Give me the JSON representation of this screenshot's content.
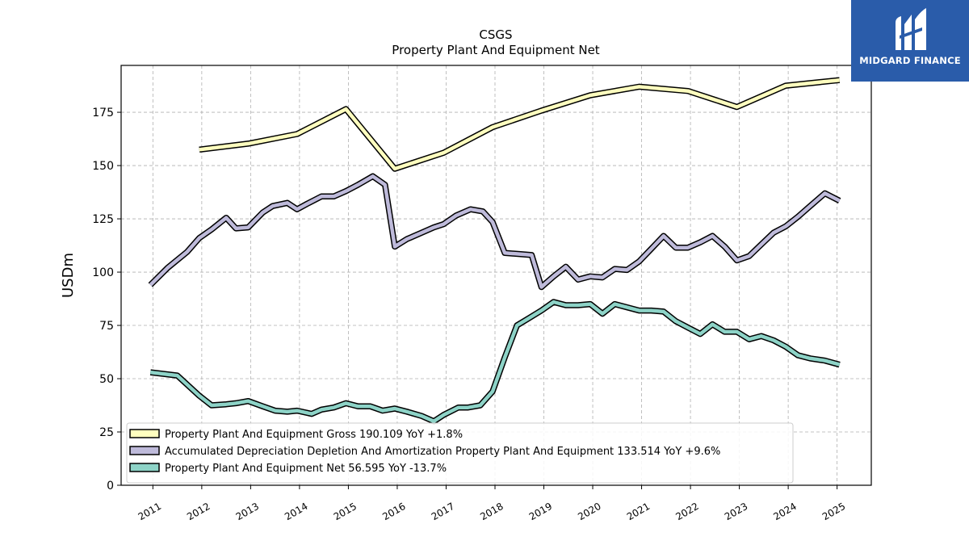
{
  "brand": {
    "name": "MIDGARD FINANCE",
    "logo_icon": "midgard-finance-logo-icon",
    "color": "#2a5caa"
  },
  "chart_data": {
    "type": "line",
    "title": "CSGS",
    "subtitle": "Property Plant And Equipment Net",
    "ylabel": "USDm",
    "xlabel": "",
    "ylim": [
      0,
      197
    ],
    "xlim": [
      2010.35,
      2025.7
    ],
    "yticks": [
      0,
      25,
      50,
      75,
      100,
      125,
      150,
      175
    ],
    "xticks": [
      2011,
      2012,
      2013,
      2014,
      2015,
      2016,
      2017,
      2018,
      2019,
      2020,
      2021,
      2022,
      2023,
      2024,
      2025
    ],
    "grid": true,
    "legend_position": "lower-left",
    "series": [
      {
        "name": "Property Plant And Equipment Gross",
        "legend_label": "Property Plant And Equipment Gross  190.109 YoY +1.8%",
        "color": "#ffffbf",
        "points": [
          [
            2011.95,
            157.5
          ],
          [
            2012.95,
            160.3
          ],
          [
            2013.95,
            164.8
          ],
          [
            2014.95,
            176.5
          ],
          [
            2015.95,
            148.5
          ],
          [
            2016.95,
            156.0
          ],
          [
            2017.95,
            168.0
          ],
          [
            2018.95,
            175.8
          ],
          [
            2019.95,
            183.0
          ],
          [
            2020.95,
            187.0
          ],
          [
            2021.95,
            185.0
          ],
          [
            2022.95,
            177.5
          ],
          [
            2023.95,
            187.5
          ],
          [
            2025.05,
            190.1
          ]
        ]
      },
      {
        "name": "Accumulated Depreciation Depletion And Amortization Property Plant And Equipment",
        "legend_label": "Accumulated Depreciation Depletion And Amortization Property Plant And Equipment  133.514 YoY +9.6%",
        "color": "#bebada",
        "points": [
          [
            2010.95,
            94.0
          ],
          [
            2011.3,
            102.0
          ],
          [
            2011.7,
            109.5
          ],
          [
            2011.95,
            116.0
          ],
          [
            2012.2,
            120.0
          ],
          [
            2012.5,
            125.5
          ],
          [
            2012.7,
            120.5
          ],
          [
            2012.95,
            121.0
          ],
          [
            2013.25,
            128.0
          ],
          [
            2013.45,
            131.0
          ],
          [
            2013.75,
            132.5
          ],
          [
            2013.95,
            129.5
          ],
          [
            2014.15,
            132.0
          ],
          [
            2014.45,
            135.5
          ],
          [
            2014.7,
            135.5
          ],
          [
            2014.95,
            138.0
          ],
          [
            2015.2,
            141.0
          ],
          [
            2015.5,
            145.0
          ],
          [
            2015.75,
            141.0
          ],
          [
            2015.95,
            112.0
          ],
          [
            2016.2,
            115.5
          ],
          [
            2016.5,
            118.5
          ],
          [
            2016.75,
            121.0
          ],
          [
            2016.95,
            122.5
          ],
          [
            2017.2,
            126.5
          ],
          [
            2017.5,
            129.5
          ],
          [
            2017.75,
            128.5
          ],
          [
            2017.95,
            123.5
          ],
          [
            2018.2,
            109.0
          ],
          [
            2018.5,
            108.5
          ],
          [
            2018.75,
            108.0
          ],
          [
            2018.95,
            93.0
          ],
          [
            2019.2,
            98.0
          ],
          [
            2019.45,
            102.5
          ],
          [
            2019.7,
            96.5
          ],
          [
            2019.95,
            98.0
          ],
          [
            2020.2,
            97.5
          ],
          [
            2020.45,
            101.5
          ],
          [
            2020.7,
            101.0
          ],
          [
            2020.95,
            105.0
          ],
          [
            2021.2,
            111.0
          ],
          [
            2021.45,
            117.0
          ],
          [
            2021.7,
            111.5
          ],
          [
            2021.95,
            111.5
          ],
          [
            2022.2,
            114.0
          ],
          [
            2022.45,
            117.0
          ],
          [
            2022.7,
            112.0
          ],
          [
            2022.95,
            105.5
          ],
          [
            2023.2,
            107.5
          ],
          [
            2023.45,
            113.0
          ],
          [
            2023.7,
            118.5
          ],
          [
            2023.95,
            121.5
          ],
          [
            2024.2,
            126.0
          ],
          [
            2024.45,
            131.0
          ],
          [
            2024.75,
            137.0
          ],
          [
            2025.05,
            133.5
          ]
        ]
      },
      {
        "name": "Property Plant And Equipment Net",
        "legend_label": "Property Plant And Equipment Net  56.595 YoY -13.7%",
        "color": "#8dd3c7",
        "points": [
          [
            2010.95,
            53.0
          ],
          [
            2011.5,
            51.5
          ],
          [
            2011.95,
            42.0
          ],
          [
            2012.2,
            37.5
          ],
          [
            2012.5,
            38.0
          ],
          [
            2012.7,
            38.5
          ],
          [
            2012.95,
            39.5
          ],
          [
            2013.25,
            37.0
          ],
          [
            2013.5,
            35.0
          ],
          [
            2013.75,
            34.5
          ],
          [
            2013.95,
            35.0
          ],
          [
            2014.25,
            33.5
          ],
          [
            2014.45,
            35.5
          ],
          [
            2014.7,
            36.5
          ],
          [
            2014.95,
            38.5
          ],
          [
            2015.2,
            37.0
          ],
          [
            2015.45,
            37.0
          ],
          [
            2015.7,
            35.0
          ],
          [
            2015.95,
            36.0
          ],
          [
            2016.2,
            34.5
          ],
          [
            2016.5,
            32.5
          ],
          [
            2016.75,
            30.0
          ],
          [
            2016.95,
            33.0
          ],
          [
            2017.25,
            36.5
          ],
          [
            2017.45,
            36.5
          ],
          [
            2017.7,
            37.5
          ],
          [
            2017.95,
            44.0
          ],
          [
            2018.2,
            60.0
          ],
          [
            2018.45,
            75.0
          ],
          [
            2018.7,
            78.5
          ],
          [
            2018.95,
            82.0
          ],
          [
            2019.2,
            86.0
          ],
          [
            2019.45,
            84.5
          ],
          [
            2019.7,
            84.5
          ],
          [
            2019.95,
            85.0
          ],
          [
            2020.2,
            80.5
          ],
          [
            2020.45,
            85.0
          ],
          [
            2020.7,
            83.5
          ],
          [
            2020.95,
            82.0
          ],
          [
            2021.2,
            82.0
          ],
          [
            2021.45,
            81.5
          ],
          [
            2021.7,
            77.0
          ],
          [
            2021.95,
            74.0
          ],
          [
            2022.2,
            71.0
          ],
          [
            2022.45,
            75.5
          ],
          [
            2022.7,
            72.0
          ],
          [
            2022.95,
            72.0
          ],
          [
            2023.2,
            68.5
          ],
          [
            2023.45,
            70.0
          ],
          [
            2023.7,
            68.0
          ],
          [
            2023.95,
            65.0
          ],
          [
            2024.2,
            61.0
          ],
          [
            2024.45,
            59.5
          ],
          [
            2024.75,
            58.5
          ],
          [
            2025.05,
            56.6
          ]
        ]
      }
    ]
  }
}
